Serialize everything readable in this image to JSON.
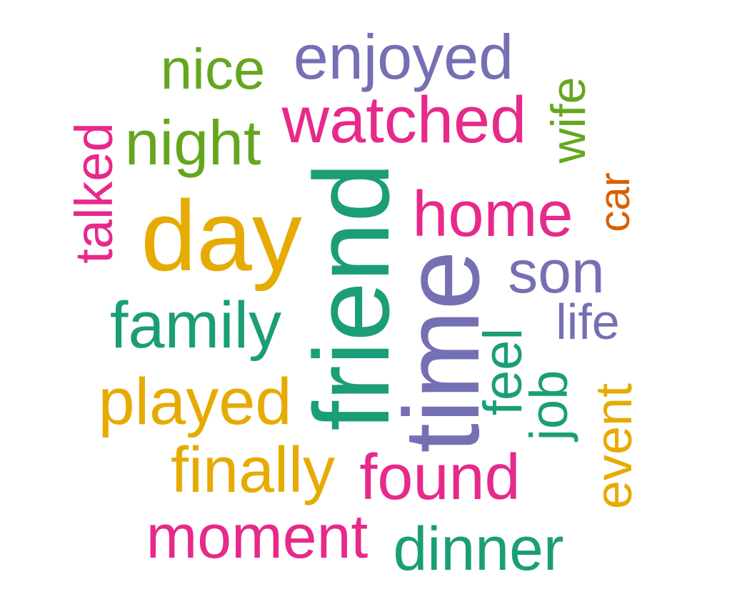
{
  "words": {
    "day": "day",
    "friend": "friend",
    "time": "time",
    "watched": "watched",
    "enjoyed": "enjoyed",
    "nice": "nice",
    "night": "night",
    "talked": "talked",
    "home": "home",
    "wife": "wife",
    "car": "car",
    "son": "son",
    "life": "life",
    "family": "family",
    "played": "played",
    "feel": "feel",
    "job": "job",
    "event": "event",
    "finally": "finally",
    "found": "found",
    "moment": "moment",
    "dinner": "dinner"
  },
  "colors": {
    "pink": "#e7298a",
    "green": "#66a61e",
    "purple": "#7570b3",
    "teal": "#1b9e77",
    "gold": "#e6ab02",
    "orange": "#d95f02"
  }
}
